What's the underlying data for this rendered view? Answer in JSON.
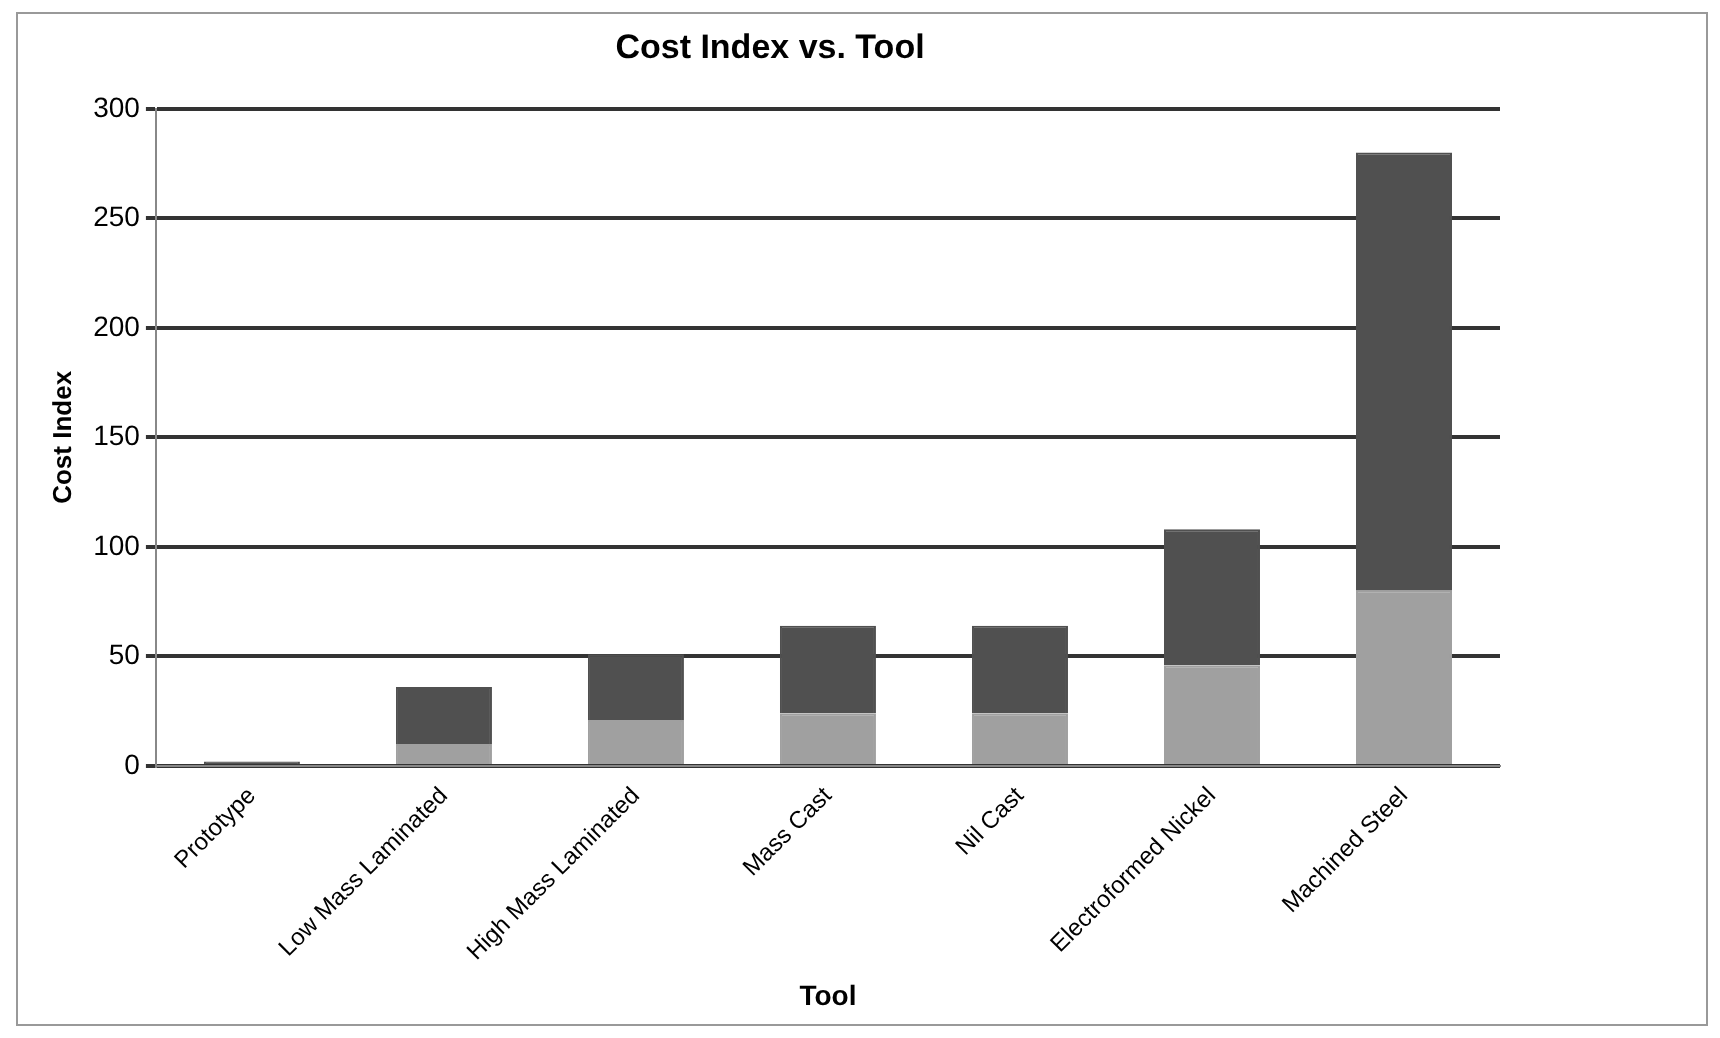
{
  "chart_data": {
    "type": "bar",
    "title": "Cost Index vs. Tool",
    "xlabel": "Tool",
    "ylabel": "Cost Index",
    "categories": [
      "Prototype",
      "Low Mass Laminated",
      "High Mass Laminated",
      "Mass Cast",
      "Nil Cast",
      "Electroformed Nickel",
      "Machined Steel"
    ],
    "stacked": true,
    "series": [
      {
        "color": "#a0a0a0",
        "values": [
          0,
          10,
          21,
          24,
          24,
          46,
          80
        ]
      },
      {
        "color": "#505050",
        "values": [
          2,
          26,
          30,
          40,
          40,
          62,
          200
        ]
      }
    ],
    "ylim": [
      0,
      300
    ],
    "yticks": [
      0,
      50,
      100,
      150,
      200,
      250,
      300
    ],
    "grid": "y",
    "legend": false
  }
}
